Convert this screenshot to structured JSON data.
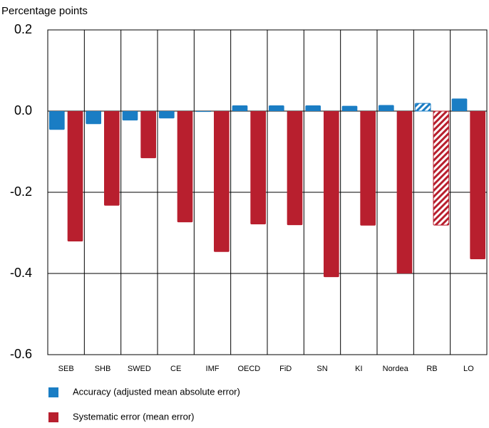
{
  "chart_data": {
    "type": "bar",
    "y_label": "Percentage points",
    "categories": [
      "SEB",
      "SHB",
      "SWED",
      "CE",
      "IMF",
      "OECD",
      "FiD",
      "SN",
      "KI",
      "Nordea",
      "RB",
      "LO"
    ],
    "series": [
      {
        "name": "Accuracy (adjusted mean absolute error)",
        "color": "#1a7dc4",
        "values": [
          -0.046,
          -0.032,
          -0.023,
          -0.018,
          -0.002,
          0.014,
          0.014,
          0.014,
          0.013,
          0.015,
          0.019,
          0.031
        ]
      },
      {
        "name": "Systematic error (mean error)",
        "color": "#b81f2e",
        "values": [
          -0.321,
          -0.233,
          -0.116,
          -0.274,
          -0.347,
          -0.279,
          -0.281,
          -0.409,
          -0.282,
          -0.4,
          -0.281,
          -0.365
        ]
      }
    ],
    "hatched": [
      false,
      false,
      false,
      false,
      false,
      false,
      false,
      false,
      false,
      false,
      true,
      false
    ],
    "ylim": [
      -0.6,
      0.2
    ],
    "yticks": [
      -0.6,
      -0.4,
      -0.2,
      {
        "value": 0,
        "label": "0.0"
      },
      0.2
    ],
    "grid": true
  }
}
